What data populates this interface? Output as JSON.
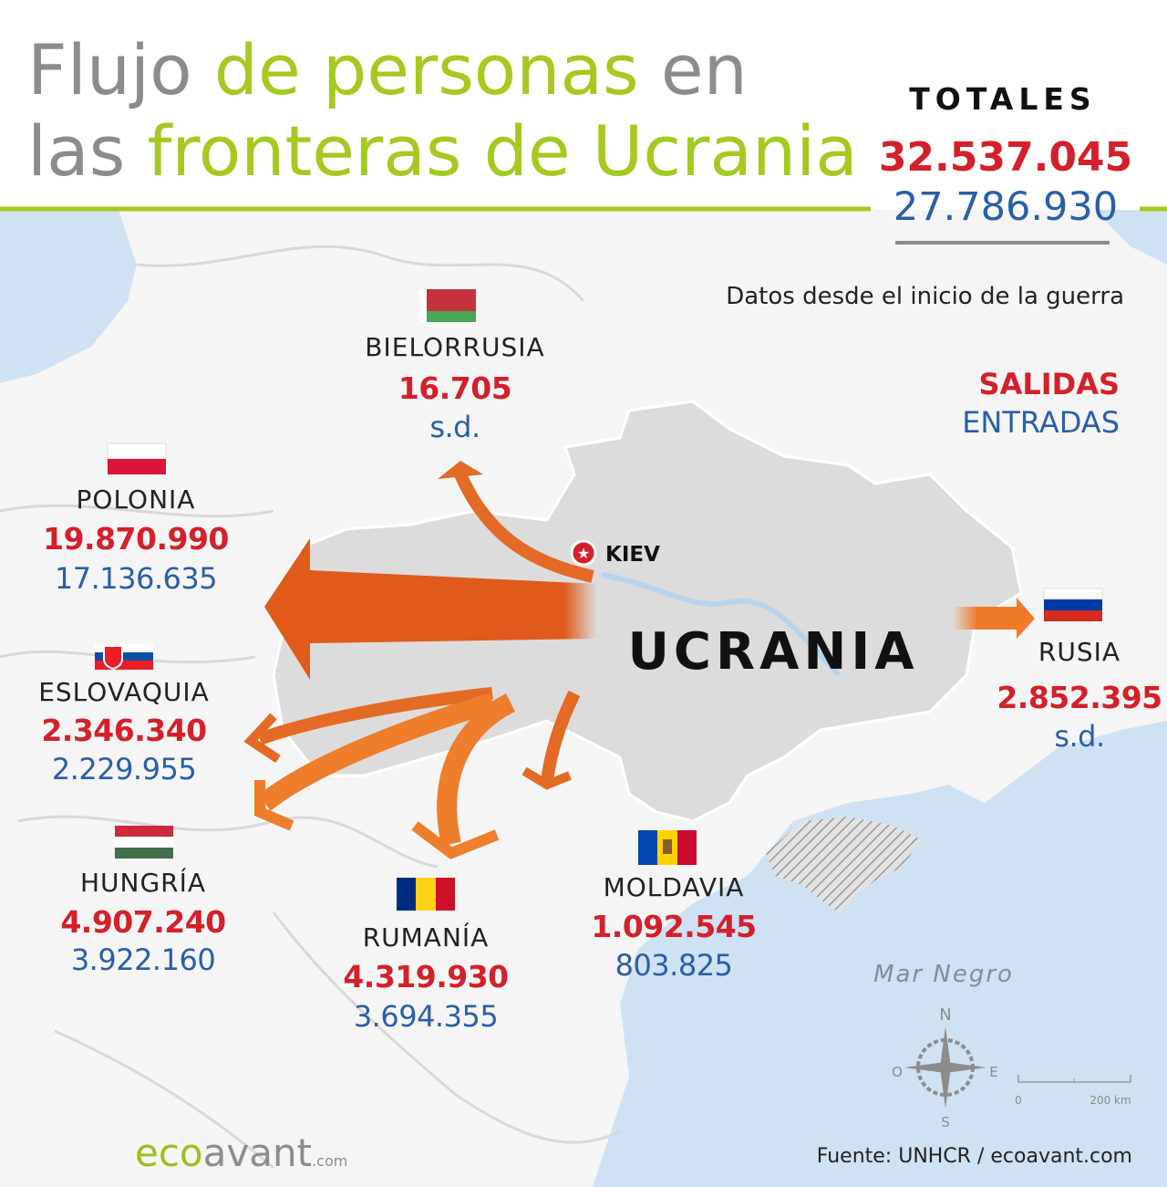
{
  "title": {
    "line1_a": "Flujo",
    "line1_b": "de personas",
    "line1_c": "en",
    "line2_a": "las",
    "line2_b": "fronteras de Ucrania"
  },
  "totals": {
    "label": "TOTALES",
    "exits": "32.537.045",
    "entries": "27.786.930"
  },
  "note": "Datos desde el inicio de la guerra",
  "legend": {
    "exits": "SALIDAS",
    "entries": "ENTRADAS"
  },
  "countries": [
    {
      "name": "BIELORRUSIA",
      "exits": "16.705",
      "entries": "s.d."
    },
    {
      "name": "POLONIA",
      "exits": "19.870.990",
      "entries": "17.136.635"
    },
    {
      "name": "ESLOVAQUIA",
      "exits": "2.346.340",
      "entries": "2.229.955"
    },
    {
      "name": "HUNGRÍA",
      "exits": "4.907.240",
      "entries": "3.922.160"
    },
    {
      "name": "RUMANÍA",
      "exits": "4.319.930",
      "entries": "3.694.355"
    },
    {
      "name": "MOLDAVIA",
      "exits": "1.092.545",
      "entries": "803.825"
    },
    {
      "name": "RUSIA",
      "exits": "2.852.395",
      "entries": "s.d."
    }
  ],
  "map": {
    "country": "UCRANIA",
    "capital": "KIEV",
    "sea": "Mar Negro",
    "compass": {
      "n": "N",
      "e": "E",
      "s": "S",
      "o": "O"
    },
    "scale": {
      "start": "0",
      "end": "200 km"
    }
  },
  "brand": {
    "name_a": "eco",
    "name_b": "avant",
    "suffix": ".com"
  },
  "source": {
    "label": "Fuente:",
    "text": "UNHCR / ecoavant.com"
  }
}
